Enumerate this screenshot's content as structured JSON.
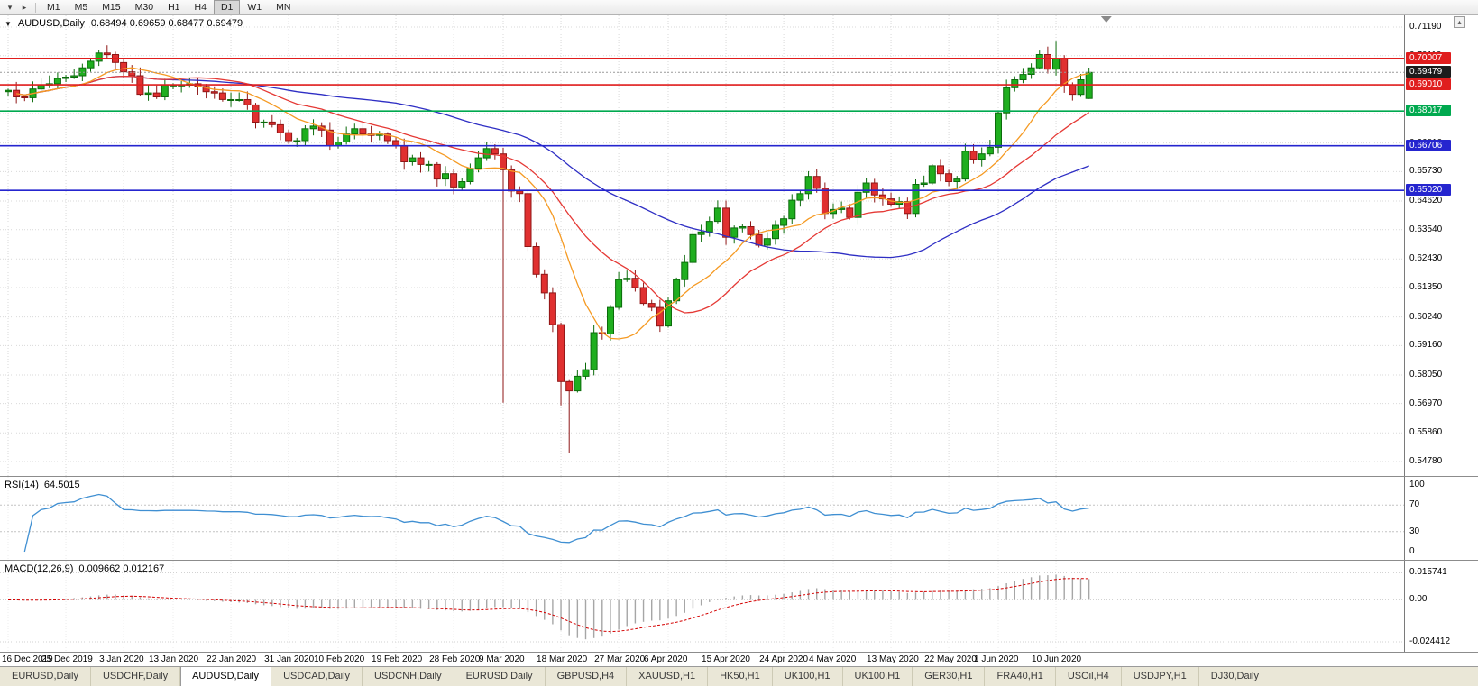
{
  "toolbar": {
    "icons": [
      {
        "name": "chart-menu",
        "glyph": "▾"
      },
      {
        "name": "chart-shift",
        "glyph": "▸"
      }
    ],
    "timeframes": [
      "M1",
      "M5",
      "M15",
      "M30",
      "H1",
      "H4",
      "D1",
      "W1",
      "MN"
    ],
    "active_timeframe": "D1"
  },
  "chart": {
    "one_click_glyph": "▼",
    "title_symbol": "AUDUSD,Daily",
    "title_ohlc": "0.68494 0.69659 0.68477 0.69479",
    "current_price": {
      "value": 0.69479,
      "label": "0.69479"
    },
    "scroll_up_glyph": "▴"
  },
  "price_axis": {
    "top_value": 0.7119,
    "bottom_value": 0.5478,
    "labels": [
      "0.71190",
      "0.70110",
      "0.69000",
      "0.67920",
      "0.66810",
      "0.65730",
      "0.64620",
      "0.63540",
      "0.62430",
      "0.61350",
      "0.60240",
      "0.59160",
      "0.58050",
      "0.56970",
      "0.55860",
      "0.54780"
    ]
  },
  "hlines": [
    {
      "value": 0.70007,
      "label": "0.70007",
      "color": "#e01d1d",
      "name": "resistance-line-070007"
    },
    {
      "value": 0.6901,
      "label": "0.69010",
      "color": "#e01d1d",
      "name": "resistance-line-069010"
    },
    {
      "value": 0.68017,
      "label": "0.68017",
      "color": "#00a94f",
      "name": "support-line-068017"
    },
    {
      "value": 0.66706,
      "label": "0.66706",
      "color": "#2525cf",
      "name": "support-line-066706"
    },
    {
      "value": 0.6502,
      "label": "0.65020",
      "color": "#2525cf",
      "name": "support-line-065020"
    }
  ],
  "rsi": {
    "label": "RSI(14)",
    "value": "64.5015",
    "period": 14,
    "levels": [
      70,
      30
    ],
    "axis_labels": [
      "100",
      "70",
      "30",
      "0"
    ]
  },
  "macd": {
    "label": "MACD(12,26,9)",
    "values": "0.009662 0.012167",
    "fast": 12,
    "slow": 26,
    "signal": 9,
    "axis_top": 0.0165,
    "axis_bottom": -0.0265,
    "axis_labels": [
      "0.015741",
      "0.00",
      "-0.024412"
    ]
  },
  "chart_data": {
    "type": "candlestick",
    "symbol": "AUDUSD",
    "timeframe": "Daily",
    "first_open": 0.6875,
    "closes": [
      0.688,
      0.6855,
      0.6852,
      0.6885,
      0.69,
      0.6905,
      0.6925,
      0.693,
      0.6935,
      0.6965,
      0.699,
      0.7021,
      0.7015,
      0.6985,
      0.695,
      0.6935,
      0.6865,
      0.687,
      0.6855,
      0.69,
      0.69,
      0.69,
      0.6905,
      0.6895,
      0.6875,
      0.687,
      0.6845,
      0.6845,
      0.6845,
      0.6825,
      0.676,
      0.676,
      0.675,
      0.672,
      0.669,
      0.669,
      0.6735,
      0.6745,
      0.673,
      0.667,
      0.6685,
      0.6715,
      0.6735,
      0.6715,
      0.671,
      0.6715,
      0.669,
      0.667,
      0.661,
      0.6625,
      0.66,
      0.66,
      0.6545,
      0.6565,
      0.6515,
      0.6535,
      0.6585,
      0.6625,
      0.666,
      0.664,
      0.658,
      0.65,
      0.649,
      0.629,
      0.6185,
      0.6115,
      0.5995,
      0.578,
      0.5745,
      0.58,
      0.5825,
      0.5965,
      0.596,
      0.606,
      0.6165,
      0.617,
      0.6135,
      0.6075,
      0.606,
      0.599,
      0.6085,
      0.6165,
      0.623,
      0.6335,
      0.6345,
      0.6385,
      0.6435,
      0.6325,
      0.636,
      0.6365,
      0.6335,
      0.6295,
      0.632,
      0.637,
      0.6395,
      0.6465,
      0.649,
      0.6555,
      0.651,
      0.6415,
      0.643,
      0.6435,
      0.64,
      0.6495,
      0.653,
      0.6485,
      0.647,
      0.645,
      0.646,
      0.6415,
      0.6525,
      0.653,
      0.6595,
      0.6565,
      0.6535,
      0.6545,
      0.665,
      0.662,
      0.664,
      0.6665,
      0.6795,
      0.689,
      0.692,
      0.694,
      0.6965,
      0.7015,
      0.696,
      0.7,
      0.69,
      0.6865,
      0.692,
      0.69479
    ],
    "overrides": {
      "11": {
        "high": 0.7032
      },
      "60": {
        "low": 0.57
      },
      "67": {
        "low": 0.569
      },
      "68": {
        "low": 0.551
      },
      "125": {
        "high": 0.703
      },
      "127": {
        "high": 0.7064
      },
      "131": {
        "open": 0.68494,
        "high": 0.69659,
        "low": 0.68477
      }
    },
    "moving_averages": [
      {
        "name": "ma-fast",
        "period": 10,
        "color": "#f59a23"
      },
      {
        "name": "ma-mid",
        "period": 20,
        "color": "#e53935"
      },
      {
        "name": "ma-slow",
        "period": 45,
        "color": "#2e2ec4"
      }
    ],
    "date_labels": [
      {
        "label": "16 Dec 2019",
        "index": 0
      },
      {
        "label": "25 Dec 2019",
        "index": 7
      },
      {
        "label": "3 Jan 2020",
        "index": 14
      },
      {
        "label": "13 Jan 2020",
        "index": 20
      },
      {
        "label": "22 Jan 2020",
        "index": 27
      },
      {
        "label": "31 Jan 2020",
        "index": 34
      },
      {
        "label": "10 Feb 2020",
        "index": 40
      },
      {
        "label": "19 Feb 2020",
        "index": 47
      },
      {
        "label": "28 Feb 2020",
        "index": 54
      },
      {
        "label": "9 Mar 2020",
        "index": 60
      },
      {
        "label": "18 Mar 2020",
        "index": 67
      },
      {
        "label": "27 Mar 2020",
        "index": 74
      },
      {
        "label": "6 Apr 2020",
        "index": 80
      },
      {
        "label": "15 Apr 2020",
        "index": 87
      },
      {
        "label": "24 Apr 2020",
        "index": 94
      },
      {
        "label": "4 May 2020",
        "index": 100
      },
      {
        "label": "13 May 2020",
        "index": 107
      },
      {
        "label": "22 May 2020",
        "index": 114
      },
      {
        "label": "1 Jun 2020",
        "index": 120
      },
      {
        "label": "10 Jun 2020",
        "index": 127
      }
    ]
  },
  "colors": {
    "bull": "#1fae1f",
    "bull_border": "#0b6b0b",
    "bear": "#e03030",
    "bear_border": "#8f1616",
    "grid": "#d9d9d9",
    "rsi_line": "#3f8fd2",
    "macd_hist": "#a6a6a6",
    "macd_signal": "#d40000",
    "current_badge_bg": "#1c1c1c",
    "axis_text": "#000000"
  },
  "tabs": {
    "items": [
      "EURUSD,Daily",
      "USDCHF,Daily",
      "AUDUSD,Daily",
      "USDCAD,Daily",
      "USDCNH,Daily",
      "EURUSD,Daily",
      "GBPUSD,H4",
      "XAUUSD,H1",
      "HK50,H1",
      "UK100,H1",
      "UK100,H1",
      "GER30,H1",
      "FRA40,H1",
      "USOil,H4",
      "USDJPY,H1",
      "DJ30,Daily"
    ],
    "active_index": 2
  }
}
